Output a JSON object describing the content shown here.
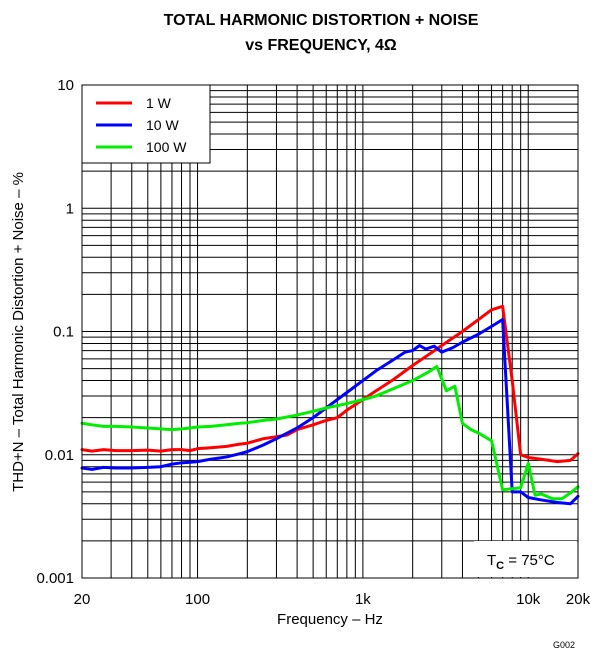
{
  "figure_code": "G002",
  "chart_data": {
    "type": "line",
    "title": "TOTAL HARMONIC DISTORTION + NOISE",
    "subtitle": "vs FREQUENCY, 4Ω",
    "xlabel": "Frequency – Hz",
    "ylabel": "THD+N – Total Harmonic Distortion + Noise – %",
    "x_scale": "log",
    "y_scale": "log",
    "xlim": [
      20,
      20000
    ],
    "ylim": [
      0.001,
      10
    ],
    "x_ticks": [
      {
        "value": 20,
        "label": "20"
      },
      {
        "value": 100,
        "label": "100"
      },
      {
        "value": 1000,
        "label": "1k"
      },
      {
        "value": 10000,
        "label": "10k"
      },
      {
        "value": 20000,
        "label": "20k"
      }
    ],
    "y_ticks": [
      {
        "value": 0.001,
        "label": "0.001"
      },
      {
        "value": 0.01,
        "label": "0.01"
      },
      {
        "value": 0.1,
        "label": "0.1"
      },
      {
        "value": 1,
        "label": "1"
      },
      {
        "value": 10,
        "label": "10"
      }
    ],
    "grid": true,
    "legend_position": "top-left",
    "annotation": {
      "main": "T",
      "sub": "C",
      "rest": " = 75°C"
    },
    "series": [
      {
        "name": "1 W",
        "color": "#ff0000",
        "x": [
          20,
          23,
          27,
          32,
          40,
          50,
          60,
          70,
          80,
          90,
          100,
          120,
          150,
          180,
          200,
          250,
          300,
          350,
          400,
          500,
          600,
          700,
          800,
          1000,
          1200,
          1500,
          2000,
          2500,
          3000,
          4000,
          5000,
          6000,
          7000,
          8000,
          9000,
          10000,
          12000,
          15000,
          18000,
          20000
        ],
        "y": [
          0.011,
          0.0107,
          0.011,
          0.0108,
          0.0108,
          0.0109,
          0.0107,
          0.011,
          0.011,
          0.0108,
          0.0112,
          0.0114,
          0.0117,
          0.0122,
          0.0124,
          0.0135,
          0.014,
          0.0145,
          0.016,
          0.0175,
          0.019,
          0.02,
          0.023,
          0.028,
          0.033,
          0.04,
          0.053,
          0.065,
          0.077,
          0.1,
          0.125,
          0.15,
          0.16,
          0.04,
          0.01,
          0.0095,
          0.0092,
          0.0088,
          0.009,
          0.0102
        ]
      },
      {
        "name": "10 W",
        "color": "#0000ff",
        "x": [
          20,
          23,
          27,
          32,
          40,
          50,
          60,
          70,
          80,
          90,
          100,
          120,
          150,
          180,
          200,
          250,
          300,
          400,
          500,
          600,
          700,
          800,
          1000,
          1200,
          1500,
          1800,
          2000,
          2200,
          2400,
          2700,
          3000,
          3500,
          4000,
          5000,
          6000,
          7000,
          8000,
          9000,
          10000,
          12000,
          15000,
          18000,
          20000
        ],
        "y": [
          0.0078,
          0.0076,
          0.0079,
          0.0078,
          0.0078,
          0.0079,
          0.008,
          0.0084,
          0.0086,
          0.0087,
          0.0088,
          0.0092,
          0.0096,
          0.0102,
          0.0106,
          0.012,
          0.0135,
          0.0165,
          0.02,
          0.024,
          0.028,
          0.032,
          0.04,
          0.048,
          0.058,
          0.068,
          0.07,
          0.077,
          0.072,
          0.076,
          0.068,
          0.074,
          0.082,
          0.095,
          0.11,
          0.125,
          0.005,
          0.005,
          0.0045,
          0.0043,
          0.0041,
          0.004,
          0.0046
        ]
      },
      {
        "name": "100 W",
        "color": "#00ee00",
        "x": [
          20,
          23,
          27,
          32,
          40,
          50,
          60,
          70,
          80,
          90,
          100,
          120,
          150,
          180,
          200,
          250,
          300,
          400,
          500,
          600,
          700,
          800,
          1000,
          1200,
          1500,
          2000,
          2500,
          2800,
          3200,
          3600,
          4000,
          4500,
          5000,
          6000,
          7000,
          8000,
          9000,
          10000,
          11000,
          12000,
          14000,
          16000,
          18000,
          20000
        ],
        "y": [
          0.018,
          0.0175,
          0.017,
          0.017,
          0.0168,
          0.0165,
          0.0162,
          0.016,
          0.0162,
          0.0165,
          0.0168,
          0.017,
          0.0175,
          0.018,
          0.0182,
          0.019,
          0.0195,
          0.021,
          0.0225,
          0.024,
          0.025,
          0.026,
          0.028,
          0.03,
          0.034,
          0.04,
          0.047,
          0.052,
          0.033,
          0.036,
          0.018,
          0.016,
          0.015,
          0.013,
          0.0052,
          0.0053,
          0.0054,
          0.0085,
          0.0047,
          0.0048,
          0.0044,
          0.0044,
          0.0049,
          0.0055
        ]
      }
    ]
  }
}
